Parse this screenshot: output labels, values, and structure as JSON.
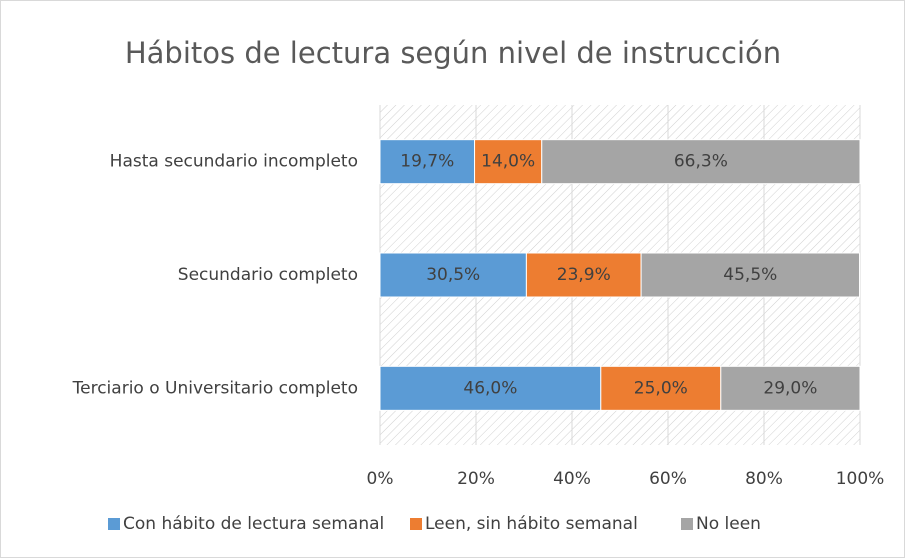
{
  "chart_data": {
    "type": "bar",
    "orientation": "horizontal",
    "stacked": true,
    "title": "Hábitos de lectura según nivel de instrucción",
    "categories": [
      "Hasta secundario incompleto",
      "Secundario completo",
      "Terciario o Universitario completo"
    ],
    "series": [
      {
        "name": "Con hábito de lectura semanal",
        "color": "#5b9bd5",
        "values": [
          19.7,
          30.5,
          46.0
        ],
        "value_labels": [
          "19,7%",
          "30,5%",
          "46,0%"
        ]
      },
      {
        "name": "Leen, sin hábito semanal",
        "color": "#ed7d31",
        "values": [
          14.0,
          23.9,
          25.0
        ],
        "value_labels": [
          "14,0%",
          "23,9%",
          "25,0%"
        ]
      },
      {
        "name": "No leen",
        "color": "#a5a5a5",
        "values": [
          66.3,
          45.5,
          29.0
        ],
        "value_labels": [
          "66,3%",
          "45,5%",
          "29,0%"
        ]
      }
    ],
    "xlim": [
      0,
      100
    ],
    "xticks": [
      {
        "value": 0,
        "label": "0%"
      },
      {
        "value": 20,
        "label": "20%"
      },
      {
        "value": 40,
        "label": "40%"
      },
      {
        "value": 60,
        "label": "60%"
      },
      {
        "value": 80,
        "label": "80%"
      },
      {
        "value": 100,
        "label": "100%"
      }
    ],
    "grid": true,
    "legend": "bottom"
  }
}
